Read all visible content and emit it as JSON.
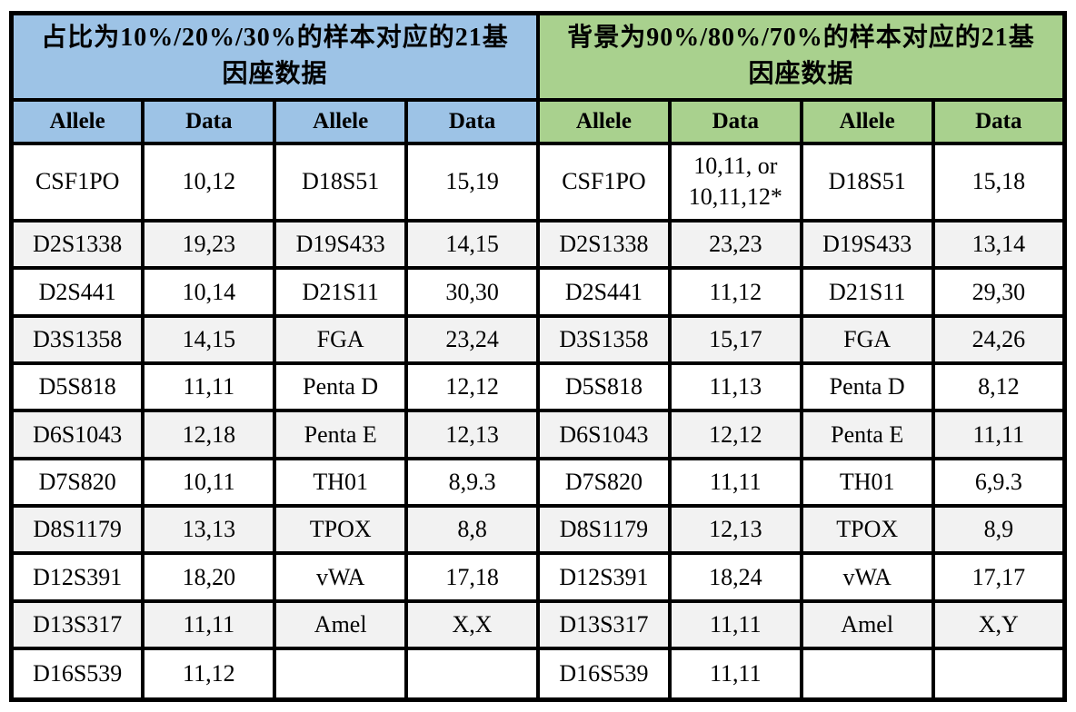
{
  "colors": {
    "left_header": "#9DC3E6",
    "right_header": "#A9D18E",
    "row_alt": "#F2F2F2",
    "row_base": "#FFFFFF",
    "border": "#000000",
    "text": "#000000"
  },
  "tables": [
    {
      "title": "占比为10%/20%/30%的样本对应的21基\n因座数据",
      "header_color": "#9DC3E6",
      "columns": [
        "Allele",
        "Data",
        "Allele",
        "Data"
      ],
      "rows": [
        [
          "CSF1PO",
          "10,12",
          "D18S51",
          "15,19"
        ],
        [
          "D2S1338",
          "19,23",
          "D19S433",
          "14,15"
        ],
        [
          "D2S441",
          "10,14",
          "D21S11",
          "30,30"
        ],
        [
          "D3S1358",
          "14,15",
          "FGA",
          "23,24"
        ],
        [
          "D5S818",
          "11,11",
          "Penta D",
          "12,12"
        ],
        [
          "D6S1043",
          "12,18",
          "Penta E",
          "12,13"
        ],
        [
          "D7S820",
          "10,11",
          "TH01",
          "8,9.3"
        ],
        [
          "D8S1179",
          "13,13",
          "TPOX",
          "8,8"
        ],
        [
          "D12S391",
          "18,20",
          "vWA",
          "17,18"
        ],
        [
          "D13S317",
          "11,11",
          "Amel",
          "X,X"
        ],
        [
          "D16S539",
          "11,12",
          "",
          ""
        ]
      ]
    },
    {
      "title": "背景为90%/80%/70%的样本对应的21基\n因座数据",
      "header_color": "#A9D18E",
      "columns": [
        "Allele",
        "Data",
        "Allele",
        "Data"
      ],
      "rows": [
        [
          "CSF1PO",
          "10,11, or\n10,11,12*",
          "D18S51",
          "15,18"
        ],
        [
          "D2S1338",
          "23,23",
          "D19S433",
          "13,14"
        ],
        [
          "D2S441",
          "11,12",
          "D21S11",
          "29,30"
        ],
        [
          "D3S1358",
          "15,17",
          "FGA",
          "24,26"
        ],
        [
          "D5S818",
          "11,13",
          "Penta D",
          "8,12"
        ],
        [
          "D6S1043",
          "12,12",
          "Penta E",
          "11,11"
        ],
        [
          "D7S820",
          "11,11",
          "TH01",
          "6,9.3"
        ],
        [
          "D8S1179",
          "12,13",
          "TPOX",
          "8,9"
        ],
        [
          "D12S391",
          "18,24",
          "vWA",
          "17,17"
        ],
        [
          "D13S317",
          "11,11",
          "Amel",
          "X,Y"
        ],
        [
          "D16S539",
          "11,11",
          "",
          ""
        ]
      ]
    }
  ]
}
